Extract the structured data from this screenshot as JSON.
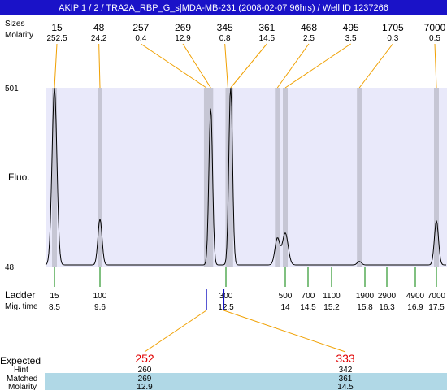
{
  "header": {
    "title": "AKIP 1 / 2 / TRA2A_RBP_G_s|MDA-MB-231 (2008-02-07 96hrs) / Well ID 1237266",
    "background": "#1a12c8",
    "text_color": "#ffffff"
  },
  "top_labels": {
    "sizes_label": "Sizes",
    "molarity_label": "Molarity"
  },
  "fluo_label": "Fluo.",
  "ladder_label": "Ladder",
  "migtime_label": "Mig. time",
  "colors": {
    "plot_bg": "#e9e9fa",
    "band": "#c6c6d4",
    "trace": "#000000",
    "connector": "#f0a000",
    "ladder_tick": "#008000",
    "expected_marker": "#1010c0",
    "expected_value": "#e00000",
    "matched_row_bg": "#b0d8e6"
  },
  "chart_data": {
    "type": "line",
    "ylim": [
      48,
      501
    ],
    "ytick_labels": [
      "501",
      "48"
    ],
    "peaks": [
      {
        "size": "15",
        "molarity": "252.5",
        "mig": 8.5,
        "height": 1.0,
        "width": 0.06
      },
      {
        "size": "48",
        "molarity": "24.2",
        "mig": 9.6,
        "height": 0.26,
        "width": 0.05
      },
      {
        "size": "257",
        "molarity": "0.4",
        "mig": 12.05,
        "height": 0.0,
        "width": 0.05
      },
      {
        "size": "269",
        "molarity": "12.9",
        "mig": 12.15,
        "height": 0.89,
        "width": 0.045
      },
      {
        "size": "345",
        "molarity": "0.8",
        "mig": 12.55,
        "height": 0.0,
        "width": 0.05
      },
      {
        "size": "361",
        "molarity": "14.5",
        "mig": 12.62,
        "height": 1.02,
        "width": 0.045
      },
      {
        "size": "468",
        "molarity": "2.5",
        "mig": 13.8,
        "height": 0.15,
        "width": 0.06
      },
      {
        "size": "495",
        "molarity": "3.5",
        "mig": 14.0,
        "height": 0.18,
        "width": 0.07
      },
      {
        "size": "1705",
        "molarity": "0.3",
        "mig": 15.7,
        "height": 0.02,
        "width": 0.05
      },
      {
        "size": "7000",
        "molarity": "0.5",
        "mig": 17.5,
        "height": 0.25,
        "width": 0.05
      }
    ],
    "ladder": [
      {
        "size": "15",
        "mig": "8.5"
      },
      {
        "size": "100",
        "mig": "9.6"
      },
      {
        "size": "300",
        "mig": "12.5"
      },
      {
        "size": "500",
        "mig": "14"
      },
      {
        "size": "700",
        "mig": "14.5"
      },
      {
        "size": "1100",
        "mig": "15.2"
      },
      {
        "size": "1900",
        "mig": "15.8"
      },
      {
        "size": "2900",
        "mig": "16.3"
      },
      {
        "size": "4900",
        "mig": "16.9"
      },
      {
        "size": "7000",
        "mig": "17.5"
      }
    ],
    "expected_table": {
      "expected_label": "Expected",
      "hint_label": "Hint",
      "matched_label": "Matched",
      "molarity_label": "Molarity",
      "columns": [
        {
          "expected": "252",
          "hint": "260",
          "matched": "269",
          "molarity": "12.9",
          "mig": 12.05
        },
        {
          "expected": "333",
          "hint": "342",
          "matched": "361",
          "molarity": "14.5",
          "mig": 12.45
        }
      ]
    }
  }
}
